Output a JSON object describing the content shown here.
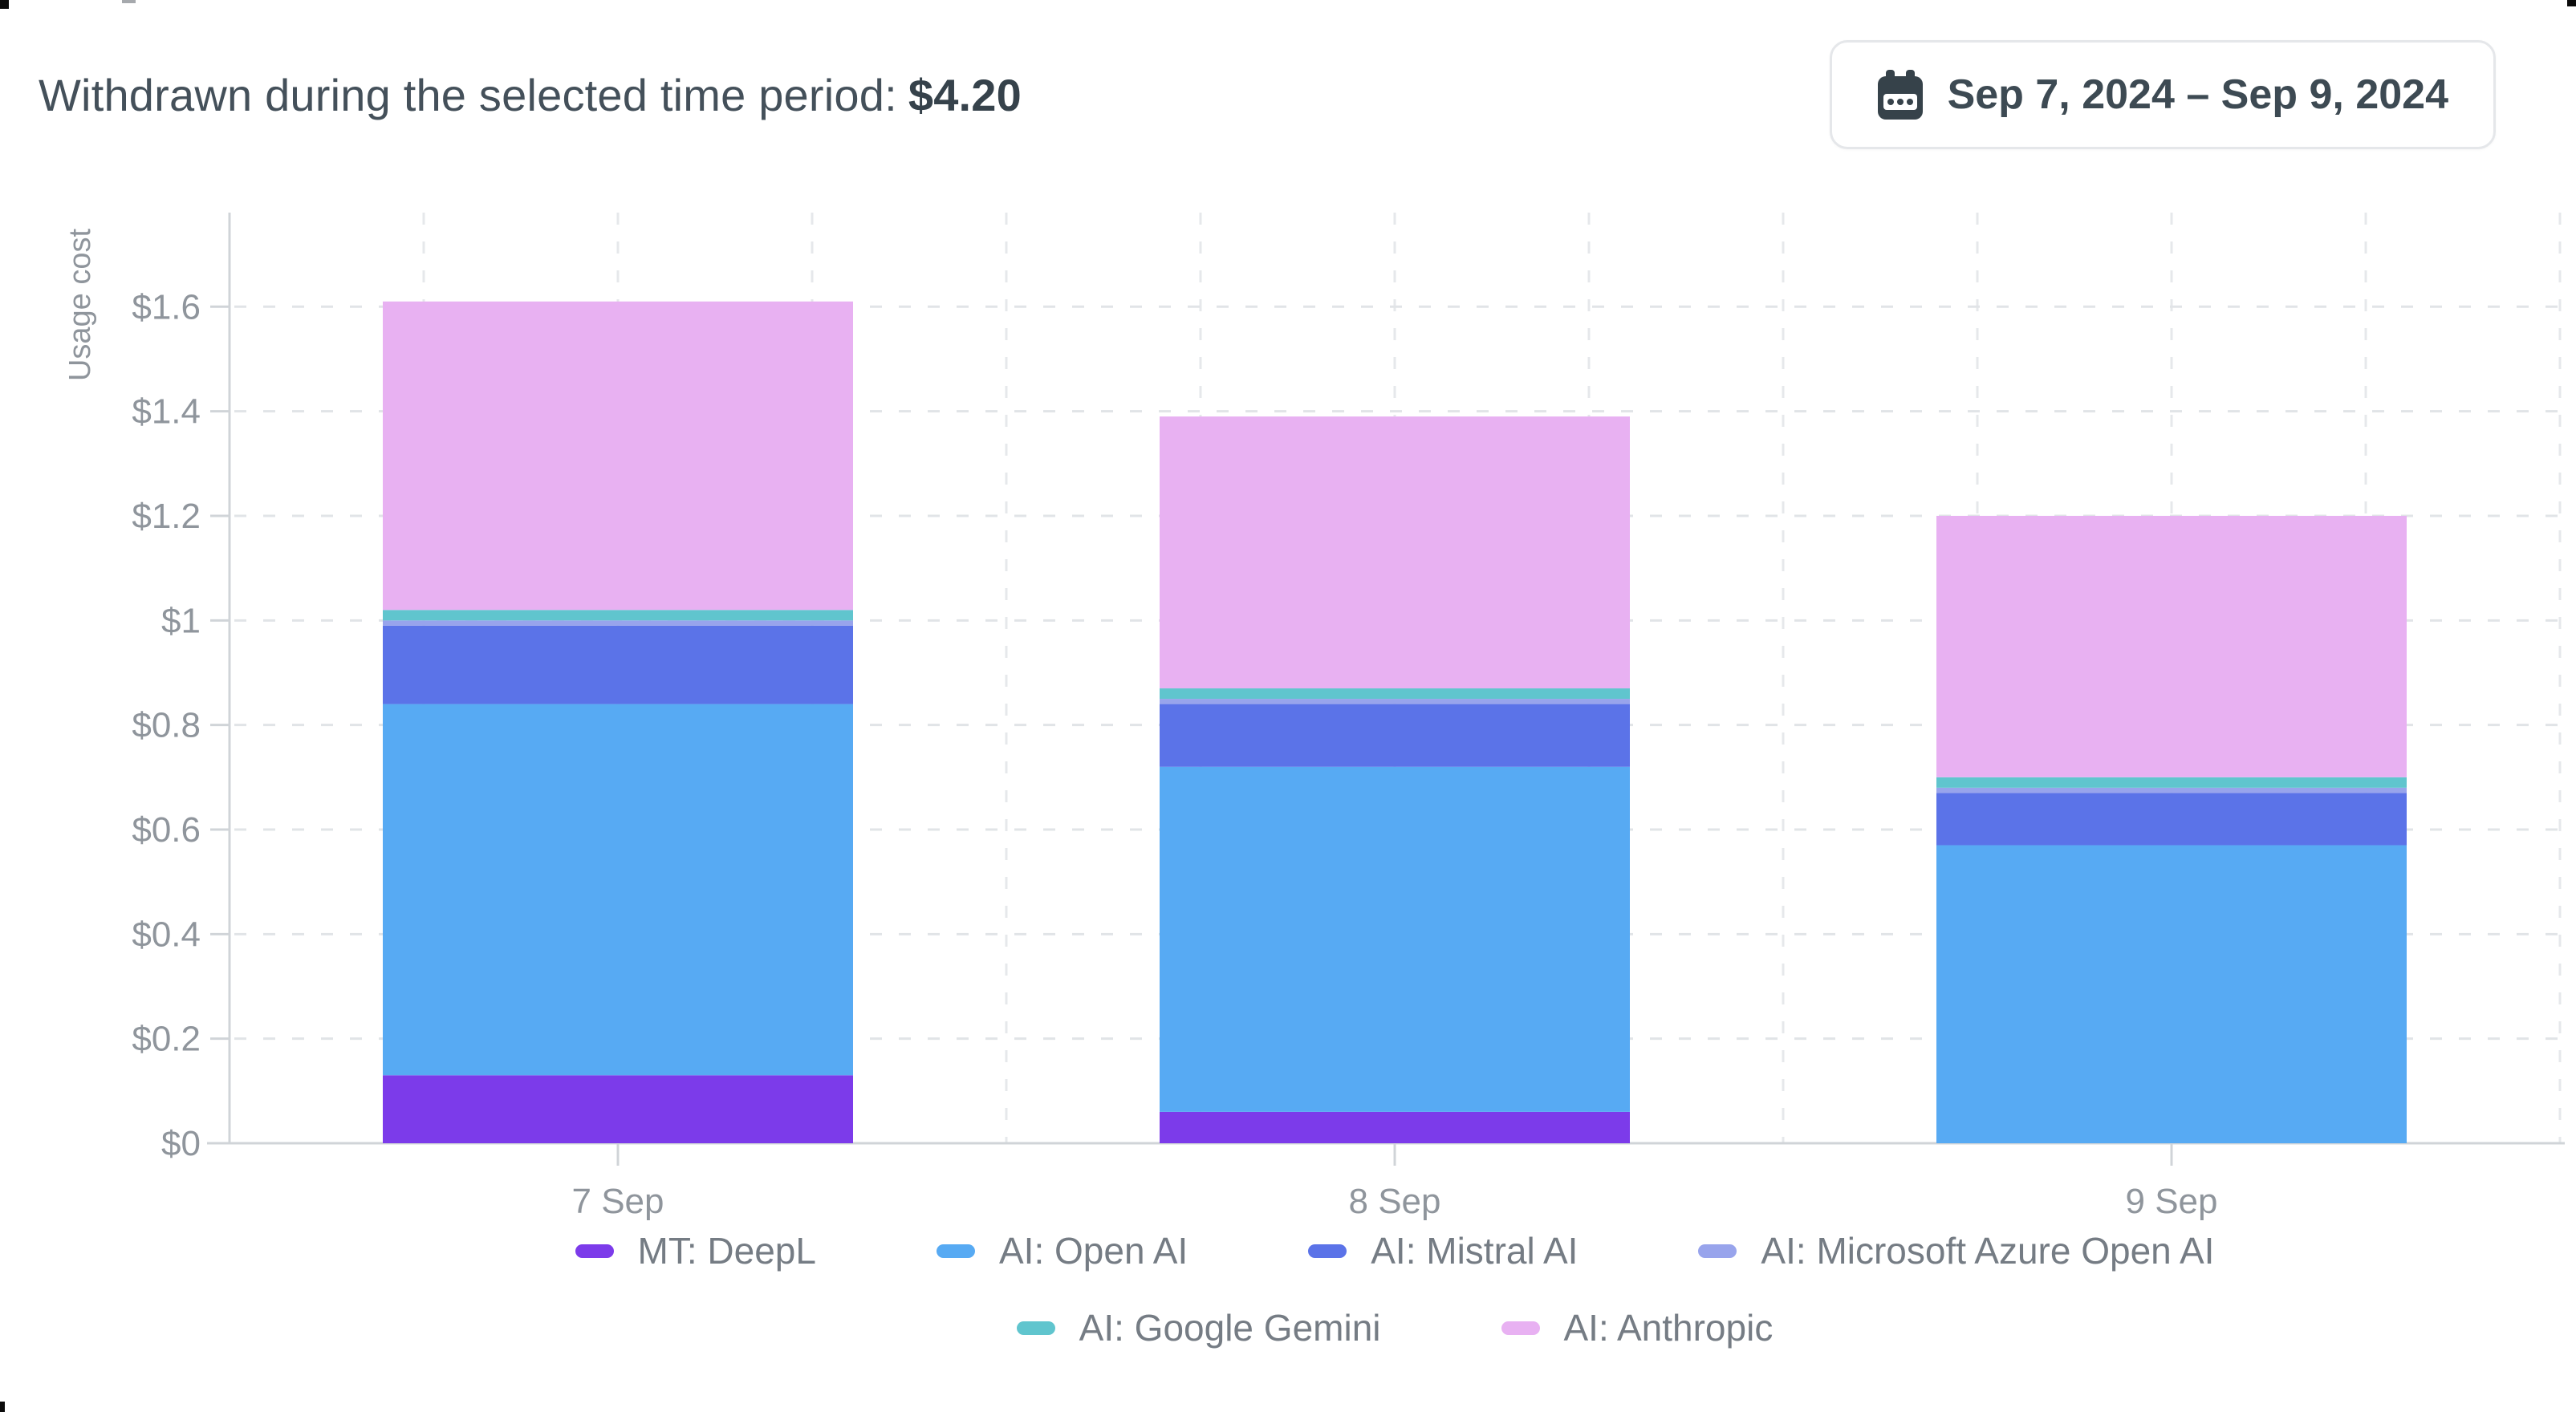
{
  "header": {
    "title_prefix": "Withdrawn during the selected time period:",
    "amount": "$4.20",
    "date_range": "Sep 7, 2024 – Sep 9, 2024"
  },
  "chart_data": {
    "type": "bar",
    "stacked": true,
    "ylabel": "Usage cost",
    "categories": [
      "7 Sep",
      "8 Sep",
      "9 Sep"
    ],
    "series": [
      {
        "name": "MT: DeepL",
        "color": "#7c3bea",
        "values": [
          0.13,
          0.06,
          0.0
        ]
      },
      {
        "name": "AI: Open AI",
        "color": "#57aaf3",
        "values": [
          0.71,
          0.66,
          0.57
        ]
      },
      {
        "name": "AI: Mistral AI",
        "color": "#5b73e8",
        "values": [
          0.15,
          0.12,
          0.1
        ]
      },
      {
        "name": "AI: Microsoft Azure Open AI",
        "color": "#98a4ec",
        "values": [
          0.01,
          0.01,
          0.01
        ]
      },
      {
        "name": "AI: Google Gemini",
        "color": "#60c5ce",
        "values": [
          0.02,
          0.02,
          0.02
        ]
      },
      {
        "name": "AI: Anthropic",
        "color": "#e8b1f2",
        "values": [
          0.59,
          0.52,
          0.5
        ]
      }
    ],
    "bar_totals": [
      1.61,
      1.39,
      1.2
    ],
    "y_tick_values": [
      0,
      0.2,
      0.4,
      0.6,
      0.8,
      1.0,
      1.2,
      1.4,
      1.6
    ],
    "y_tick_labels": [
      "$0",
      "$0.2",
      "$0.4",
      "$0.6",
      "$0.8",
      "$1",
      "$1.2",
      "$1.4",
      "$1.6"
    ],
    "ylim": [
      0,
      1.78
    ],
    "grid": "dashed",
    "legend_position": "bottom",
    "legend_rows": [
      4,
      2
    ]
  },
  "colors": {
    "title_text": "#44505a",
    "axis_text": "#8f959c",
    "legend_text": "#757c84",
    "grid_line": "#e1e4e7",
    "axis_line": "#d0d4d8"
  }
}
